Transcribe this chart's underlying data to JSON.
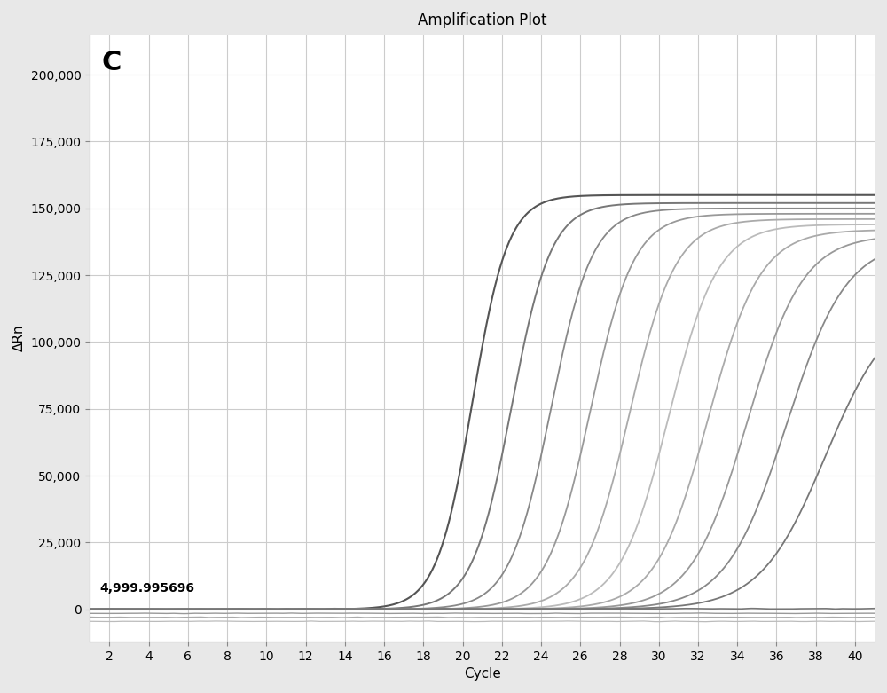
{
  "title": "Amplification Plot",
  "xlabel": "Cycle",
  "ylabel": "ΔRn",
  "panel_label": "C",
  "annotation": "4,999.995696",
  "xlim": [
    1,
    41
  ],
  "ylim": [
    -12000,
    215000
  ],
  "yticks": [
    0,
    25000,
    50000,
    75000,
    100000,
    125000,
    150000,
    175000,
    200000
  ],
  "xticks": [
    2,
    4,
    6,
    8,
    10,
    12,
    14,
    16,
    18,
    20,
    22,
    24,
    26,
    28,
    30,
    32,
    34,
    36,
    38,
    40
  ],
  "background_color": "#e8e8e8",
  "plot_bg_color": "#ffffff",
  "grid_color": "#cccccc",
  "curves": [
    {
      "midpoint": 20.5,
      "L": 155000,
      "k": 1.1,
      "color": "#555555",
      "lw": 1.5
    },
    {
      "midpoint": 22.5,
      "L": 152000,
      "k": 1.0,
      "color": "#777777",
      "lw": 1.4
    },
    {
      "midpoint": 24.5,
      "L": 150000,
      "k": 0.95,
      "color": "#888888",
      "lw": 1.3
    },
    {
      "midpoint": 26.5,
      "L": 148000,
      "k": 0.9,
      "color": "#999999",
      "lw": 1.3
    },
    {
      "midpoint": 28.5,
      "L": 146000,
      "k": 0.85,
      "color": "#aaaaaa",
      "lw": 1.3
    },
    {
      "midpoint": 30.5,
      "L": 144000,
      "k": 0.8,
      "color": "#bbbbbb",
      "lw": 1.3
    },
    {
      "midpoint": 32.5,
      "L": 142000,
      "k": 0.75,
      "color": "#aaaaaa",
      "lw": 1.3
    },
    {
      "midpoint": 34.5,
      "L": 140000,
      "k": 0.7,
      "color": "#999999",
      "lw": 1.3
    },
    {
      "midpoint": 36.5,
      "L": 138000,
      "k": 0.65,
      "color": "#888888",
      "lw": 1.3
    },
    {
      "midpoint": 38.5,
      "L": 115000,
      "k": 0.6,
      "color": "#777777",
      "lw": 1.3
    }
  ],
  "flat_curves": [
    {
      "noise_seed": 42,
      "base": 200,
      "color": "#777777",
      "lw": 1.2
    },
    {
      "noise_seed": 43,
      "base": -1500,
      "color": "#999999",
      "lw": 1.0
    },
    {
      "noise_seed": 44,
      "base": -3000,
      "color": "#aaaaaa",
      "lw": 0.9
    },
    {
      "noise_seed": 45,
      "base": -4500,
      "color": "#bbbbbb",
      "lw": 0.9
    }
  ],
  "title_fontsize": 12,
  "label_fontsize": 11,
  "tick_fontsize": 10,
  "panel_fontsize": 22,
  "annotation_fontsize": 10
}
